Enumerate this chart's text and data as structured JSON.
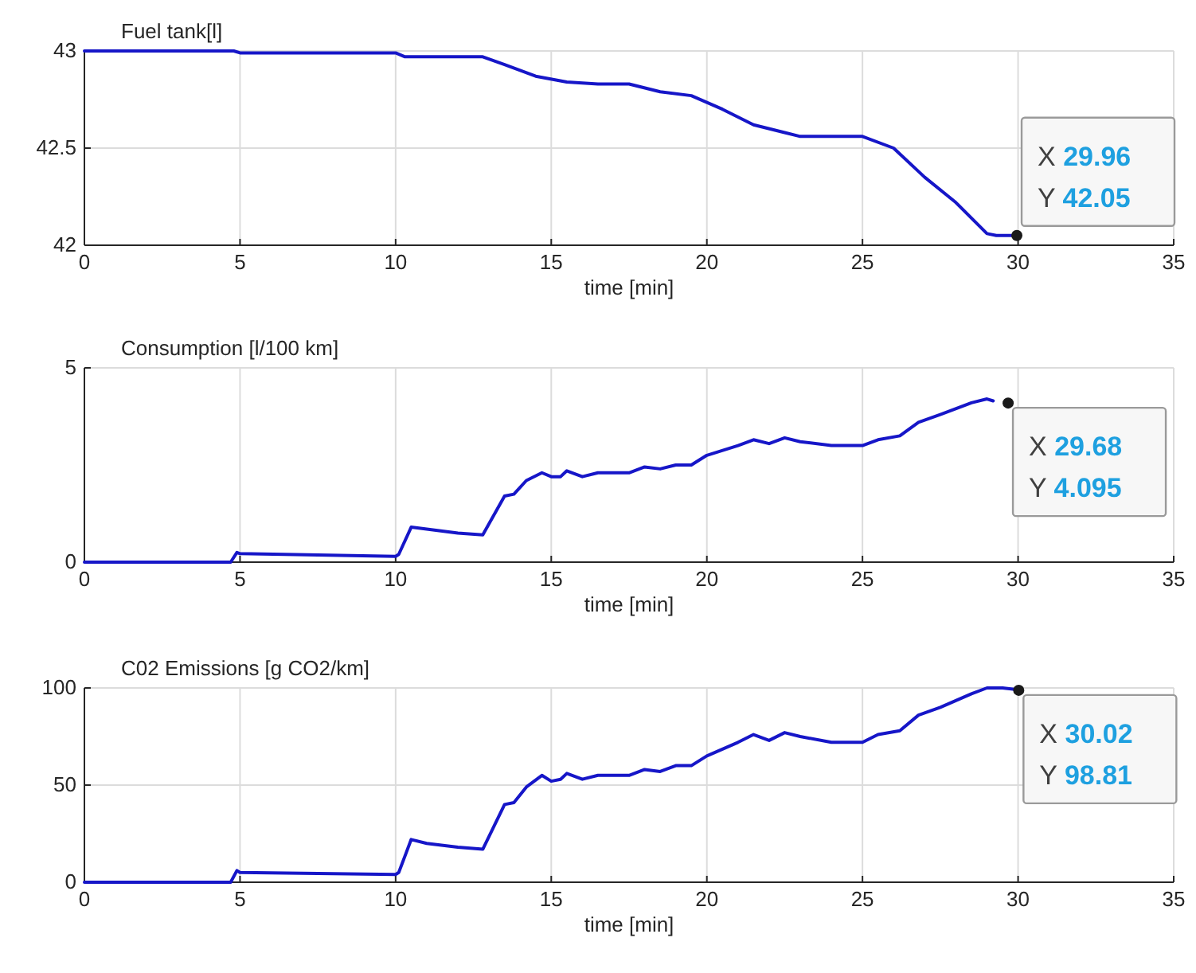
{
  "chart_data": [
    {
      "type": "line",
      "title": "Fuel tank[l]",
      "xlabel": "time [min]",
      "xlim": [
        0,
        35
      ],
      "xticks": [
        0,
        5,
        10,
        15,
        20,
        25,
        30,
        35
      ],
      "ylim": [
        42,
        43
      ],
      "yticks": [
        42,
        42.5,
        43
      ],
      "grid": true,
      "series": [
        {
          "color": "#1616c8",
          "x": [
            0,
            4.8,
            5,
            10,
            10.3,
            12.8,
            13.5,
            14.5,
            15.5,
            16.5,
            17.5,
            18.5,
            19.5,
            20.5,
            21.5,
            22.5,
            23,
            25,
            26,
            27,
            28,
            29,
            29.3,
            29.96
          ],
          "values": [
            43,
            43,
            42.99,
            42.99,
            42.97,
            42.97,
            42.93,
            42.87,
            42.84,
            42.83,
            42.83,
            42.79,
            42.77,
            42.7,
            42.62,
            42.58,
            42.56,
            42.56,
            42.5,
            42.35,
            42.22,
            42.06,
            42.05,
            42.05
          ]
        }
      ],
      "annotations": [
        {
          "text": "X 29.96\nY 42.05",
          "x": 29.96,
          "y": 42.05
        }
      ]
    },
    {
      "type": "line",
      "title": "Consumption [l/100 km]",
      "xlabel": "time [min]",
      "xlim": [
        0,
        35
      ],
      "xticks": [
        0,
        5,
        10,
        15,
        20,
        25,
        30,
        35
      ],
      "ylim": [
        0,
        5
      ],
      "yticks": [
        0,
        5
      ],
      "grid": true,
      "series": [
        {
          "color": "#1616c8",
          "x": [
            0,
            4.7,
            4.9,
            5,
            10,
            10.1,
            10.5,
            11,
            12,
            12.8,
            13.5,
            13.8,
            14.2,
            14.7,
            15,
            15.3,
            15.5,
            16,
            16.5,
            17.5,
            18,
            18.5,
            19,
            19.5,
            20,
            21,
            21.5,
            22,
            22.5,
            23,
            24,
            25,
            25.5,
            26.2,
            26.8,
            27.5,
            28.5,
            29,
            29.2
          ],
          "values": [
            0,
            0,
            0.25,
            0.22,
            0.15,
            0.2,
            0.9,
            0.85,
            0.75,
            0.7,
            1.7,
            1.75,
            2.1,
            2.3,
            2.2,
            2.2,
            2.35,
            2.2,
            2.3,
            2.3,
            2.45,
            2.4,
            2.5,
            2.5,
            2.75,
            3.0,
            3.15,
            3.05,
            3.2,
            3.1,
            3.0,
            3.0,
            3.15,
            3.25,
            3.6,
            3.8,
            4.1,
            4.2,
            4.15
          ]
        }
      ],
      "annotations": [
        {
          "text": "X 29.68\nY 4.095",
          "x": 29.68,
          "y": 4.095
        }
      ]
    },
    {
      "type": "line",
      "title": "C02 Emissions [g CO2/km]",
      "xlabel": "time [min]",
      "xlim": [
        0,
        35
      ],
      "xticks": [
        0,
        5,
        10,
        15,
        20,
        25,
        30,
        35
      ],
      "ylim": [
        0,
        100
      ],
      "yticks": [
        0,
        50,
        100
      ],
      "grid": true,
      "series": [
        {
          "color": "#1616c8",
          "x": [
            0,
            4.7,
            4.9,
            5,
            10,
            10.1,
            10.5,
            11,
            12,
            12.8,
            13.5,
            13.8,
            14.2,
            14.7,
            15,
            15.3,
            15.5,
            16,
            16.5,
            17.5,
            18,
            18.5,
            19,
            19.5,
            20,
            21,
            21.5,
            22,
            22.5,
            23,
            24,
            25,
            25.5,
            26.2,
            26.8,
            27.5,
            28.5,
            29,
            29.5,
            30.02
          ],
          "values": [
            0,
            0,
            6,
            5,
            4,
            5,
            22,
            20,
            18,
            17,
            40,
            41,
            49,
            55,
            52,
            53,
            56,
            53,
            55,
            55,
            58,
            57,
            60,
            60,
            65,
            72,
            76,
            73,
            77,
            75,
            72,
            72,
            76,
            78,
            86,
            90,
            97,
            100,
            100,
            99
          ]
        }
      ],
      "annotations": [
        {
          "text": "X 30.02\nY 98.81",
          "x": 30.02,
          "y": 98.81
        }
      ]
    }
  ]
}
